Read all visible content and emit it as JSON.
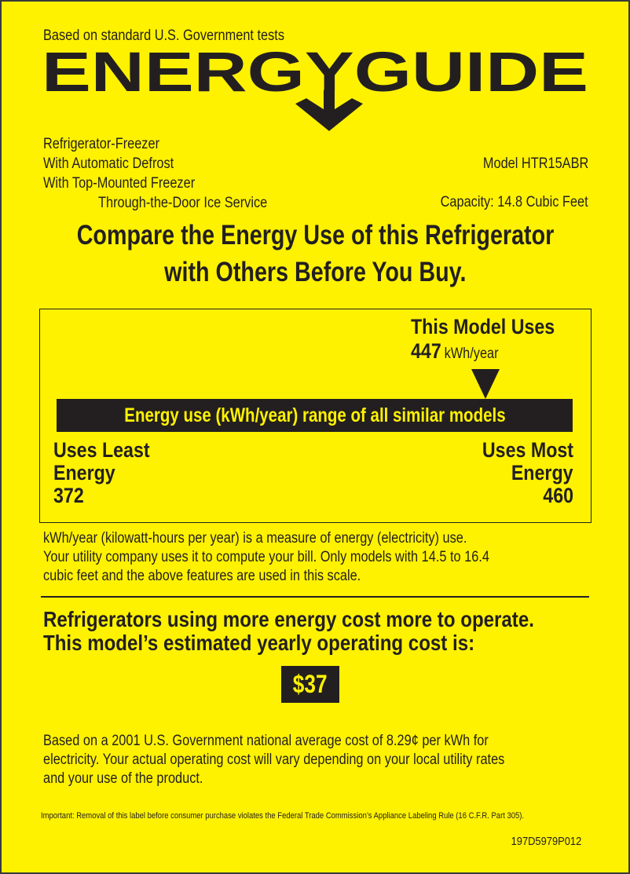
{
  "header": {
    "tagline": "Based on standard U.S. Government tests",
    "logo_text": "ENERGYGUIDE"
  },
  "appliance": {
    "features": [
      "Refrigerator-Freezer",
      "With Automatic Defrost",
      "With Top-Mounted Freezer",
      "Through-the-Door Ice Service"
    ],
    "model": "Model HTR15ABR",
    "capacity": "Capacity: 14.8 Cubic Feet"
  },
  "headline": {
    "line1": "Compare the Energy Use of this Refrigerator",
    "line2": "with Others Before You Buy."
  },
  "scale": {
    "this_model_label": "This Model Uses",
    "this_model_value": "447",
    "this_model_unit": "kWh/year",
    "bar_label": "Energy use (kWh/year) range of all similar models",
    "least_label1": "Uses Least",
    "least_label2": "Energy",
    "least_value": "372",
    "most_label1": "Uses Most",
    "most_label2": "Energy",
    "most_value": "460",
    "min": 372,
    "max": 460,
    "model_kwh": 447
  },
  "explanation": [
    "kWh/year (kilowatt-hours per year) is a measure of energy (electricity) use.",
    "Your utility company uses it to compute your bill. Only models with 14.5 to 16.4",
    "cubic feet and the above features are used in this scale."
  ],
  "cost": {
    "line1": "Refrigerators using more energy cost more to operate.",
    "line2": "This model’s estimated yearly operating cost is:",
    "value": "$37"
  },
  "footnote": [
    "Based on a 2001 U.S. Government national average cost of 8.29¢ per kWh for",
    "electricity. Your actual operating cost will vary depending on your local utility rates",
    "and your use of the product."
  ],
  "legal": "Important: Removal of this label before consumer purchase violates the Federal Trade Commission’s Appliance Labeling Rule  (16 C.F.R. Part 305).",
  "label_code": "197D5979P012",
  "colors": {
    "background": "#fff200",
    "ink": "#231f20"
  }
}
